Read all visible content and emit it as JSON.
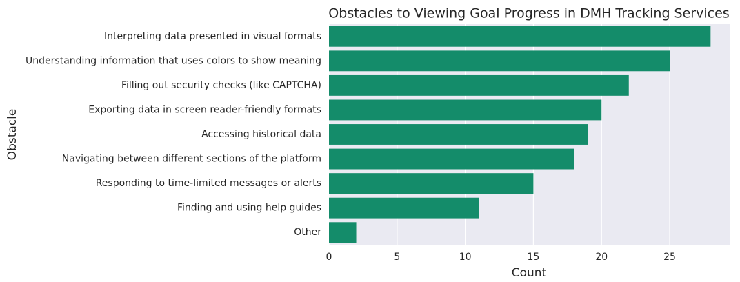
{
  "chart_data": {
    "type": "bar",
    "orientation": "horizontal",
    "title": "Obstacles to Viewing Goal Progress in DMH Tracking Services",
    "xlabel": "Count",
    "ylabel": "Obstacle",
    "categories": [
      "Interpreting data presented in visual formats",
      "Understanding information that uses colors to show meaning",
      "Filling out security checks (like CAPTCHA)",
      "Exporting data in screen reader-friendly formats",
      "Accessing historical data",
      "Navigating between different sections of the platform",
      "Responding to time-limited messages or alerts",
      "Finding and using help guides",
      "Other"
    ],
    "values": [
      28,
      25,
      22,
      20,
      19,
      18,
      15,
      11,
      2
    ],
    "color": "#148c6a",
    "xlim": [
      0,
      29.4
    ],
    "xticks": [
      0,
      5,
      10,
      15,
      20,
      25
    ],
    "grid": true
  }
}
